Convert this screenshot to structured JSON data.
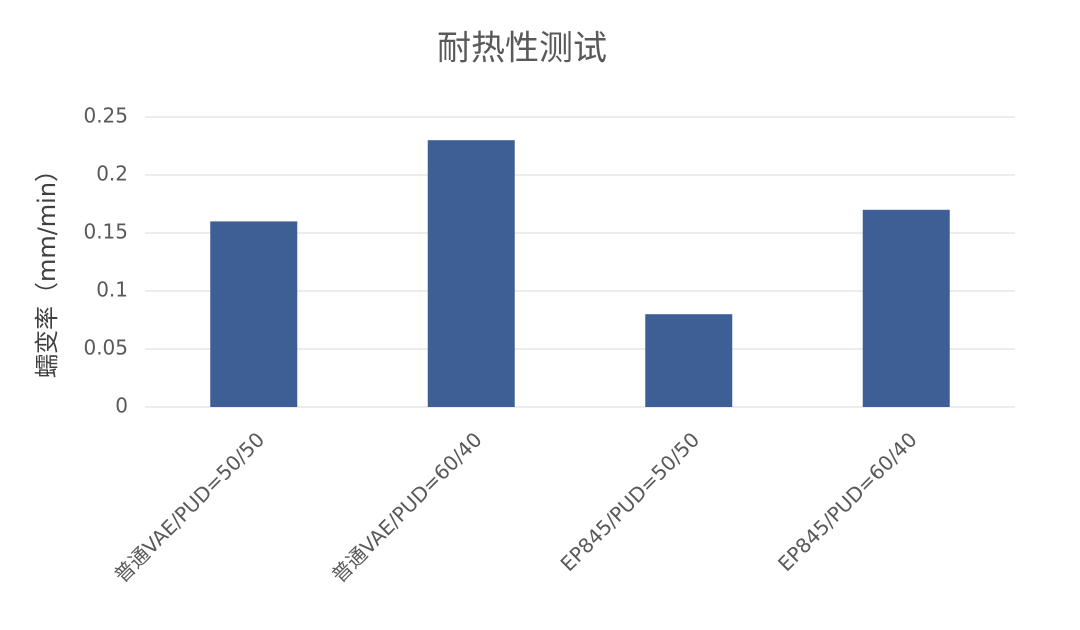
{
  "chart_data": {
    "type": "bar",
    "title": "耐热性测试",
    "y_label": "蠕变率（mm/min）",
    "categories": [
      "普通VAE/PUD=50/50",
      "普通VAE/PUD=60/40",
      "EP845/PUD=50/50",
      "EP845/PUD=60/40"
    ],
    "values": [
      0.16,
      0.23,
      0.08,
      0.17
    ],
    "color": "#3e5f95",
    "ylim": [
      0,
      0.25
    ],
    "yticks": [
      0,
      0.05,
      0.1,
      0.15,
      0.2,
      0.25
    ],
    "grid": true
  }
}
